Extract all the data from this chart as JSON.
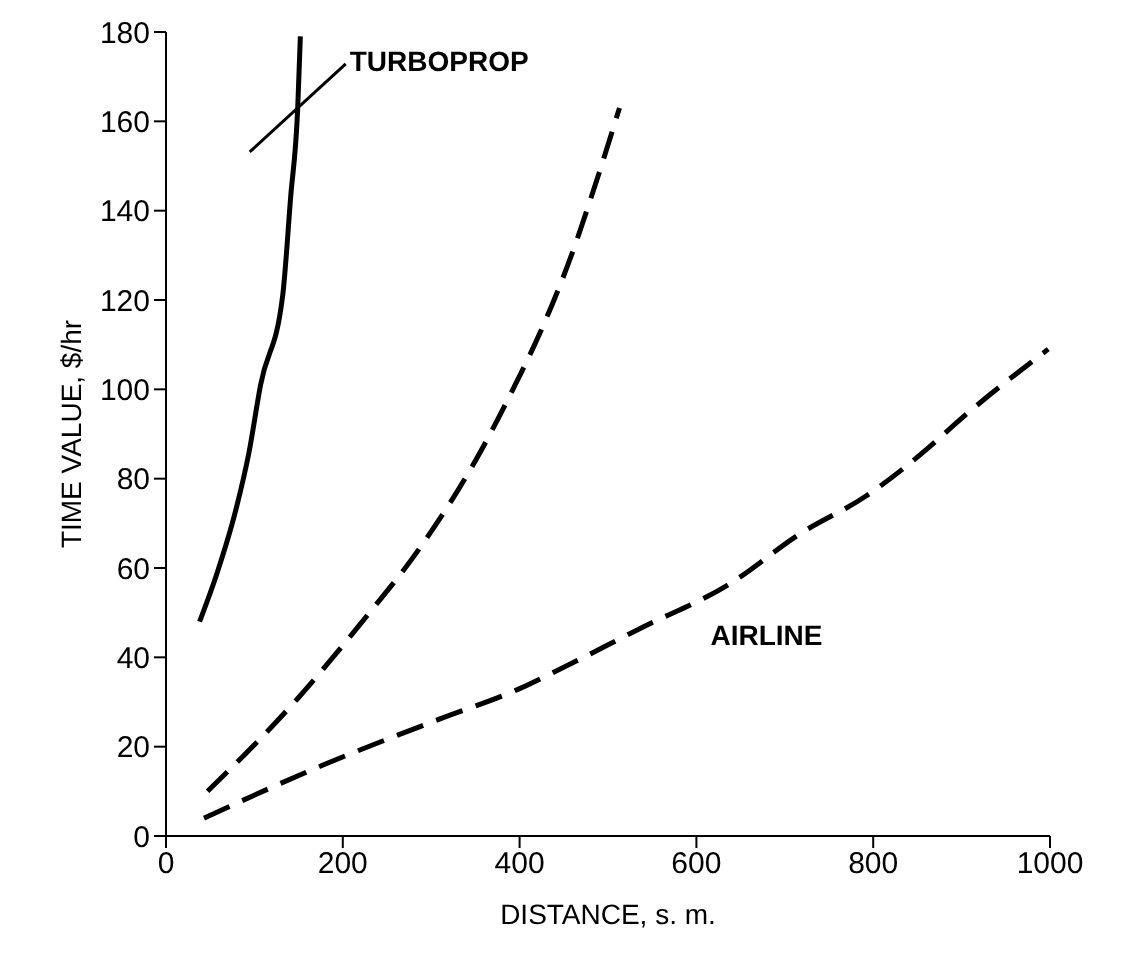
{
  "chart_data": {
    "type": "line",
    "xlabel": "DISTANCE, s. m.",
    "ylabel": "TIME VALUE, $/hr",
    "xlim": [
      0,
      1000
    ],
    "xticks": [
      0,
      200,
      400,
      600,
      800,
      1000
    ],
    "ylim": [
      0,
      180
    ],
    "yticks": [
      0,
      20,
      40,
      60,
      80,
      100,
      120,
      140,
      160,
      180
    ],
    "marker": "none",
    "series": [
      {
        "name": "TURBOPROP",
        "color": "#000000",
        "line_style": "solid",
        "x": [
          38,
          58,
          79,
          94,
          107,
          132,
          141,
          149,
          152
        ],
        "values": [
          48,
          59,
          73,
          86,
          101,
          121,
          143,
          163,
          179
        ]
      },
      {
        "color": "#000000",
        "line_style": "dashed",
        "x": [
          47,
          150,
          222,
          289,
          350,
          400,
          417,
          464,
          481,
          513
        ],
        "values": [
          10,
          31,
          48,
          65,
          84,
          103,
          110,
          133,
          143,
          163
        ]
      },
      {
        "name": "AIRLINE",
        "color": "#000000",
        "line_style": "dashed",
        "x": [
          43,
          179,
          307,
          400,
          442,
          542,
          634,
          720,
          791,
          863,
          897,
          998
        ],
        "values": [
          4,
          16,
          26,
          33,
          37,
          47,
          56,
          68,
          76,
          87,
          93,
          109
        ]
      }
    ]
  }
}
